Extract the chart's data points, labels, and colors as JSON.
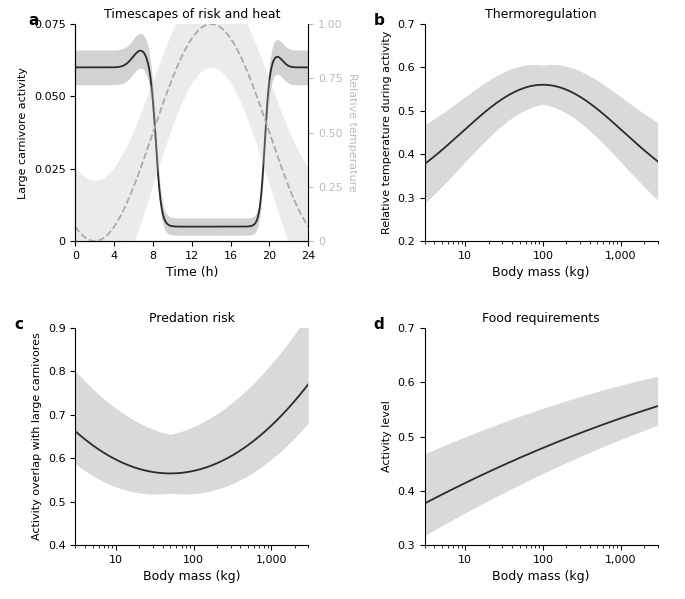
{
  "panel_a": {
    "title": "Timescapes of risk and heat",
    "xlabel": "Time (h)",
    "ylabel_left": "Large carnivore activity",
    "ylabel_right": "Relative temperature",
    "xlim": [
      0,
      24
    ],
    "ylim_left": [
      0,
      0.075
    ],
    "ylim_right": [
      0,
      1.0
    ],
    "xticks": [
      0,
      4,
      8,
      12,
      16,
      20,
      24
    ],
    "yticks_left": [
      0,
      0.025,
      0.05,
      0.075
    ],
    "yticks_right": [
      0,
      0.25,
      0.5,
      0.75,
      1.0
    ],
    "ytick_labels_left": [
      "0",
      "0.025",
      "0.050",
      "0.075"
    ],
    "ytick_labels_right": [
      "0",
      "0.25",
      "0.50",
      "0.75",
      "1.00"
    ]
  },
  "panel_b": {
    "title": "Thermoregulation",
    "xlabel": "Body mass (kg)",
    "ylabel": "Relative temperature during activity",
    "xlim": [
      3,
      3000
    ],
    "ylim": [
      0.2,
      0.7
    ],
    "yticks": [
      0.2,
      0.3,
      0.4,
      0.5,
      0.6,
      0.7
    ],
    "xticks": [
      10,
      100,
      1000
    ],
    "xtick_labels": [
      "10",
      "100",
      "1,000"
    ]
  },
  "panel_c": {
    "title": "Predation risk",
    "xlabel": "Body mass (kg)",
    "ylabel": "Activity overlap with large carnivores",
    "xlim": [
      3,
      3000
    ],
    "ylim": [
      0.4,
      0.9
    ],
    "yticks": [
      0.4,
      0.5,
      0.6,
      0.7,
      0.8,
      0.9
    ],
    "xticks": [
      10,
      100,
      1000
    ],
    "xtick_labels": [
      "10",
      "100",
      "1,000"
    ]
  },
  "panel_d": {
    "title": "Food requirements",
    "xlabel": "Body mass (kg)",
    "ylabel": "Activity level",
    "xlim": [
      3,
      3000
    ],
    "ylim": [
      0.3,
      0.7
    ],
    "yticks": [
      0.3,
      0.4,
      0.5,
      0.6,
      0.7
    ],
    "xticks": [
      10,
      100,
      1000
    ],
    "xtick_labels": [
      "10",
      "100",
      "1,000"
    ]
  },
  "line_color": "#2b2b2b",
  "shade_color": "#c0c0c0",
  "shade_alpha": 0.6,
  "background_color": "#ffffff"
}
